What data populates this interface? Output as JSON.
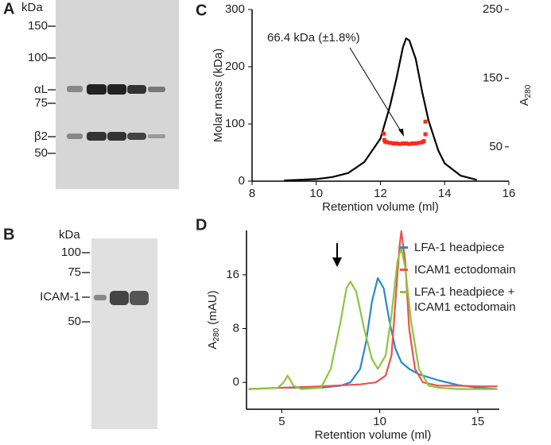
{
  "panel_labels": [
    "A",
    "B",
    "C",
    "D"
  ],
  "gel_a": {
    "unit": "kDa",
    "markers": [
      "150",
      "100",
      "75",
      "50"
    ],
    "bands": [
      "αL",
      "β2"
    ]
  },
  "gel_b": {
    "unit": "kDa",
    "markers": [
      "100",
      "75",
      "50"
    ],
    "bands": [
      "ICAM-1"
    ]
  },
  "chart_data": [
    {
      "type": "line",
      "xlabel": "Retention volume (ml)",
      "ylabel": "Molar mass (kDa)",
      "y2label": "A",
      "y2label_sub": "280",
      "annotation": "66.4 kDa (±1.8%)",
      "xlim": [
        8,
        16
      ],
      "xticks": [
        8,
        10,
        12,
        14,
        16
      ],
      "ylim": [
        0,
        300
      ],
      "yticks": [
        0,
        100,
        200,
        300
      ],
      "y2lim": [
        0,
        250
      ],
      "y2ticks": [
        50,
        150,
        250
      ],
      "series": [
        {
          "type": "line",
          "axis": "y2",
          "color": "#000000",
          "x": [
            9,
            10,
            10.5,
            11,
            11.5,
            12,
            12.3,
            12.5,
            12.7,
            12.8,
            12.9,
            13.1,
            13.3,
            13.5,
            13.8,
            14,
            14.5,
            15
          ],
          "values": [
            1,
            3,
            6,
            12,
            28,
            62,
            110,
            150,
            195,
            208,
            205,
            178,
            130,
            88,
            45,
            26,
            8,
            2
          ]
        },
        {
          "type": "scatter",
          "color": "#ff2a1a",
          "x": [
            12.1,
            12.12,
            12.15,
            12.2,
            12.3,
            12.4,
            12.5,
            12.6,
            12.7,
            12.8,
            12.9,
            13.0,
            13.1,
            13.2,
            13.3,
            13.35,
            13.4,
            13.4
          ],
          "values": [
            83,
            72,
            69,
            68,
            67,
            66,
            66,
            65,
            66,
            66,
            65,
            66,
            66,
            67,
            68,
            70,
            82,
            104
          ]
        }
      ]
    },
    {
      "type": "line",
      "xlabel": "Retention volume (ml)",
      "ylabel": {
        "main": "A",
        "sub": "280",
        "rest": " (mAU)"
      },
      "xlim": [
        3.2,
        16.1
      ],
      "xticks": [
        5,
        10,
        15
      ],
      "ylim": [
        -4,
        22.6
      ],
      "yticks": [
        0,
        8,
        16
      ],
      "series": [
        {
          "name": "LFA-1 headpiece",
          "color": "#2a8ac6",
          "x": [
            3.3,
            5,
            7,
            8,
            8.5,
            9,
            9.3,
            9.6,
            9.9,
            10.2,
            10.5,
            10.8,
            11.1,
            11.5,
            12,
            13,
            14,
            15,
            16
          ],
          "values": [
            -1,
            -0.8,
            -0.8,
            -0.5,
            0,
            2,
            6,
            12,
            15.5,
            14,
            9,
            5,
            3,
            2,
            1.2,
            0.3,
            -0.4,
            -0.8,
            -1
          ]
        },
        {
          "name": "ICAM1 ectodomain",
          "color": "#e8554e",
          "x": [
            3.3,
            5,
            7,
            9,
            9.8,
            10.3,
            10.6,
            10.8,
            11,
            11.1,
            11.3,
            11.5,
            11.8,
            12.2,
            13,
            14,
            15,
            16
          ],
          "values": [
            -1,
            -0.8,
            -0.6,
            -0.3,
            0,
            1,
            4,
            12,
            20,
            22.5,
            18,
            8,
            2,
            0,
            -0.5,
            -0.5,
            -0.6,
            -0.6
          ]
        },
        {
          "name": "LFA-1 headpiece + ICAM1 ectodomain",
          "color": "#8cc63f",
          "x": [
            3.3,
            4.8,
            5.1,
            5.3,
            5.6,
            6,
            7,
            7.5,
            8,
            8.3,
            8.5,
            8.8,
            9.2,
            9.6,
            9.9,
            10.3,
            10.6,
            10.9,
            11.1,
            11.3,
            11.6,
            12,
            12.5,
            13,
            14,
            15,
            16
          ],
          "values": [
            -1,
            -0.8,
            0,
            1,
            -0.5,
            -1,
            -0.8,
            2,
            9,
            14,
            15,
            13.5,
            8,
            3.5,
            2,
            4,
            10,
            18,
            20,
            17,
            9,
            2,
            -0.5,
            -0.8,
            -1,
            -1,
            -1
          ]
        }
      ]
    }
  ]
}
